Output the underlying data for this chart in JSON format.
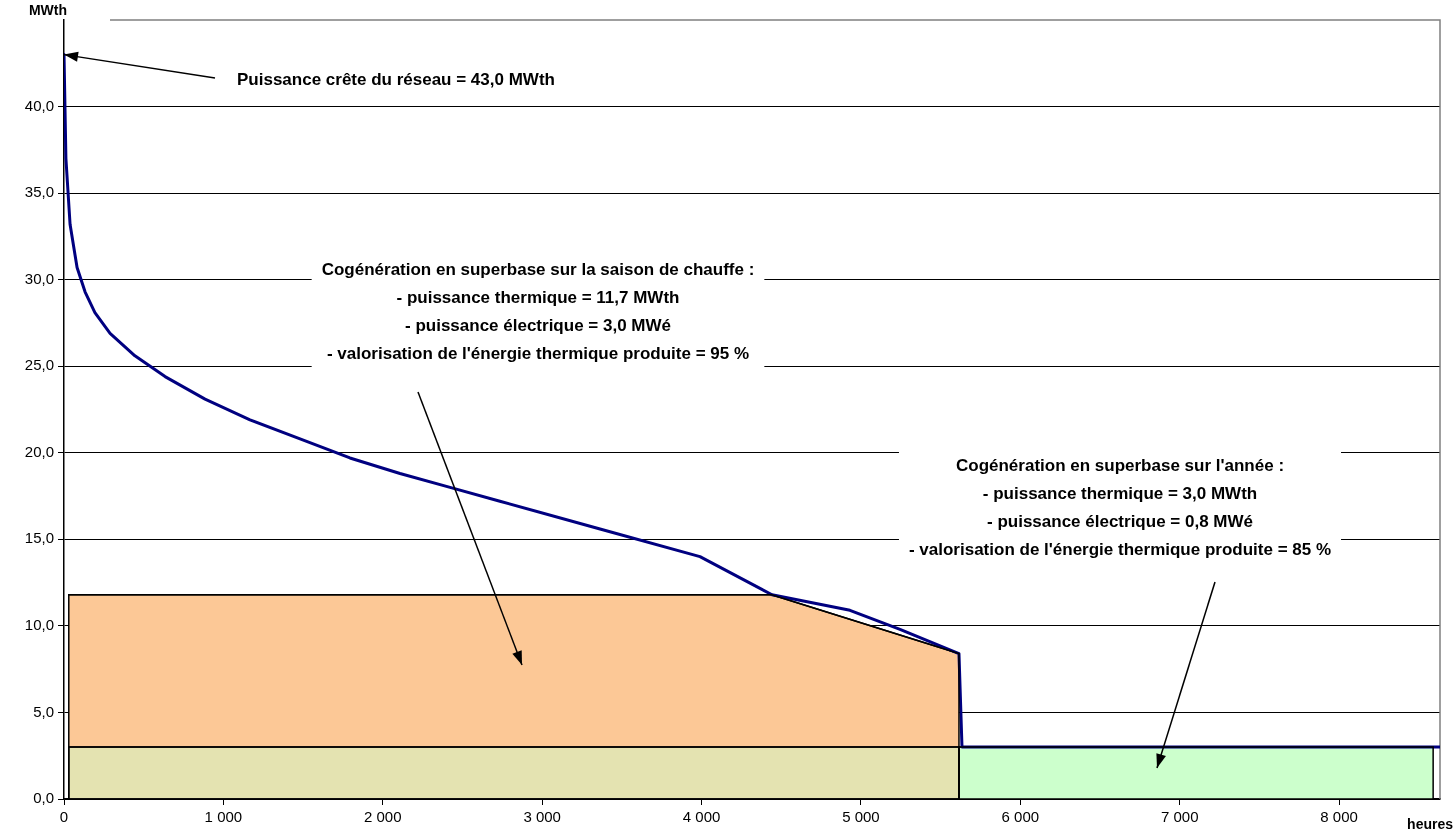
{
  "chart_data": {
    "type": "area",
    "xlabel": "heures",
    "ylabel": "MWth",
    "xlim": [
      0,
      8633
    ],
    "ylim": [
      0,
      45
    ],
    "xticks": [
      0,
      {
        "value": 1000,
        "label": "1 000"
      },
      {
        "value": 2000,
        "label": "2 000"
      },
      {
        "value": 3000,
        "label": "3 000"
      },
      {
        "value": 4000,
        "label": "4 000"
      },
      {
        "value": 5000,
        "label": "5 000"
      },
      {
        "value": 6000,
        "label": "6 000"
      },
      {
        "value": 7000,
        "label": "7 000"
      },
      {
        "value": 8000,
        "label": "8 000"
      }
    ],
    "yticks": [
      {
        "value": 0,
        "label": "0,0"
      },
      {
        "value": 5,
        "label": "5,0"
      },
      {
        "value": 10,
        "label": "10,0"
      },
      {
        "value": 15,
        "label": "15,0"
      },
      {
        "value": 20,
        "label": "20,0"
      },
      {
        "value": 25,
        "label": "25,0"
      },
      {
        "value": 30,
        "label": "30,0"
      },
      {
        "value": 35,
        "label": "35,0"
      },
      {
        "value": 40,
        "label": "40,0"
      }
    ],
    "grid": "y",
    "legend": false,
    "series": [
      {
        "color": "#fcc896",
        "x": [
          30,
          4440,
          5615
        ],
        "values": [
          11.8,
          11.8,
          8.4
        ]
      },
      {
        "color": "#e4e3b1",
        "x": [
          30,
          5615
        ],
        "values": [
          3.0,
          3.0
        ]
      },
      {
        "color": "#ccffcc",
        "x": [
          5615,
          8590
        ],
        "values": [
          3.0,
          3.0
        ]
      },
      {
        "type": "line",
        "color": "#000080",
        "x": [
          0,
          12,
          38,
          82,
          132,
          194,
          289,
          445,
          634,
          885,
          1167,
          1481,
          1794,
          2108,
          2422,
          2735,
          3363,
          3990,
          4442,
          4931,
          5245,
          5615,
          5634,
          8633
        ],
        "values": [
          43.0,
          37.0,
          33.2,
          30.7,
          29.3,
          28.1,
          26.9,
          25.6,
          24.4,
          23.1,
          21.9,
          20.8,
          19.7,
          18.8,
          18.0,
          17.2,
          15.6,
          14.0,
          11.8,
          10.9,
          9.8,
          8.4,
          3.0,
          3.0
        ]
      }
    ],
    "annotations": [
      {
        "text": "Puissance crête du réseau = 43,0 MWth",
        "x": 0,
        "y": 43.0
      },
      "Cogénération en superbase sur la saison de chauffe :\n- puissance thermique = 11,7 MWth\n- puissance électrique = 3,0 MWé\n- valorisation de l'énergie thermique produite = 95 %",
      "Cogénération en superbase sur l'année :\n- puissance thermique = 3,0 MWth\n- puissance électrique = 0,8 MWé\n- valorisation de l'énergie thermique produite = 85 %"
    ]
  }
}
